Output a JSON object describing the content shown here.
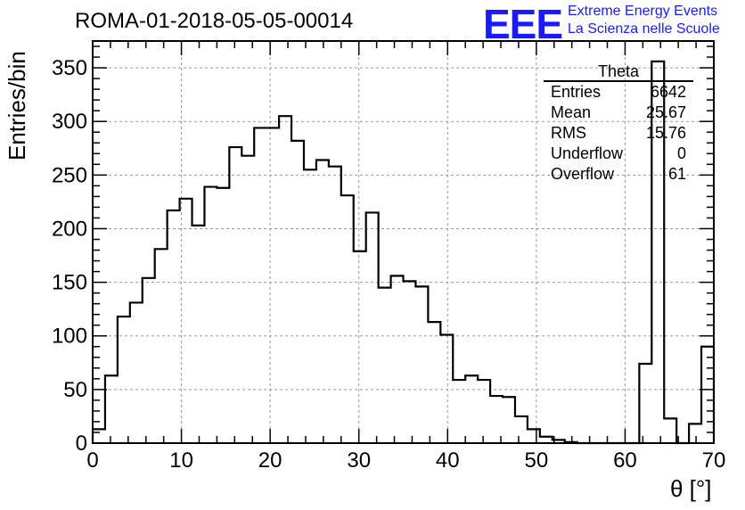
{
  "header": {
    "title": "ROMA-01-2018-05-05-00014",
    "logo_text": "EEE",
    "logo_line1": "Extreme Energy Events",
    "logo_line2": "La Scienza nelle Scuole"
  },
  "stats_box": {
    "title": "Theta",
    "rows": [
      {
        "label": "Entries",
        "value": "6642"
      },
      {
        "label": "Mean",
        "value": "25.67"
      },
      {
        "label": "RMS",
        "value": "15.76"
      },
      {
        "label": "Underflow",
        "value": "0"
      },
      {
        "label": "Overflow",
        "value": "61"
      }
    ]
  },
  "chart_data": {
    "type": "bar",
    "style": "step-histogram",
    "title": "ROMA-01-2018-05-05-00014",
    "xlabel": "θ [°]",
    "ylabel": "Entries/bin",
    "xlim": [
      0,
      70
    ],
    "ylim": [
      0,
      375
    ],
    "x_ticks": [
      0,
      10,
      20,
      30,
      40,
      50,
      60,
      70
    ],
    "y_ticks": [
      0,
      50,
      100,
      150,
      200,
      250,
      300,
      350
    ],
    "grid": true,
    "bin_width": 1.4,
    "values": [
      13,
      63,
      118,
      131,
      154,
      181,
      217,
      228,
      203,
      239,
      238,
      276,
      268,
      294,
      294,
      305,
      282,
      255,
      264,
      258,
      231,
      179,
      215,
      145,
      156,
      151,
      146,
      113,
      101,
      59,
      63,
      59,
      44,
      43,
      25,
      13,
      6,
      3,
      1,
      0,
      0,
      0,
      0,
      0,
      74,
      356,
      23,
      0,
      18,
      90
    ],
    "line_color": "#000000",
    "grid_color": "#999999"
  }
}
